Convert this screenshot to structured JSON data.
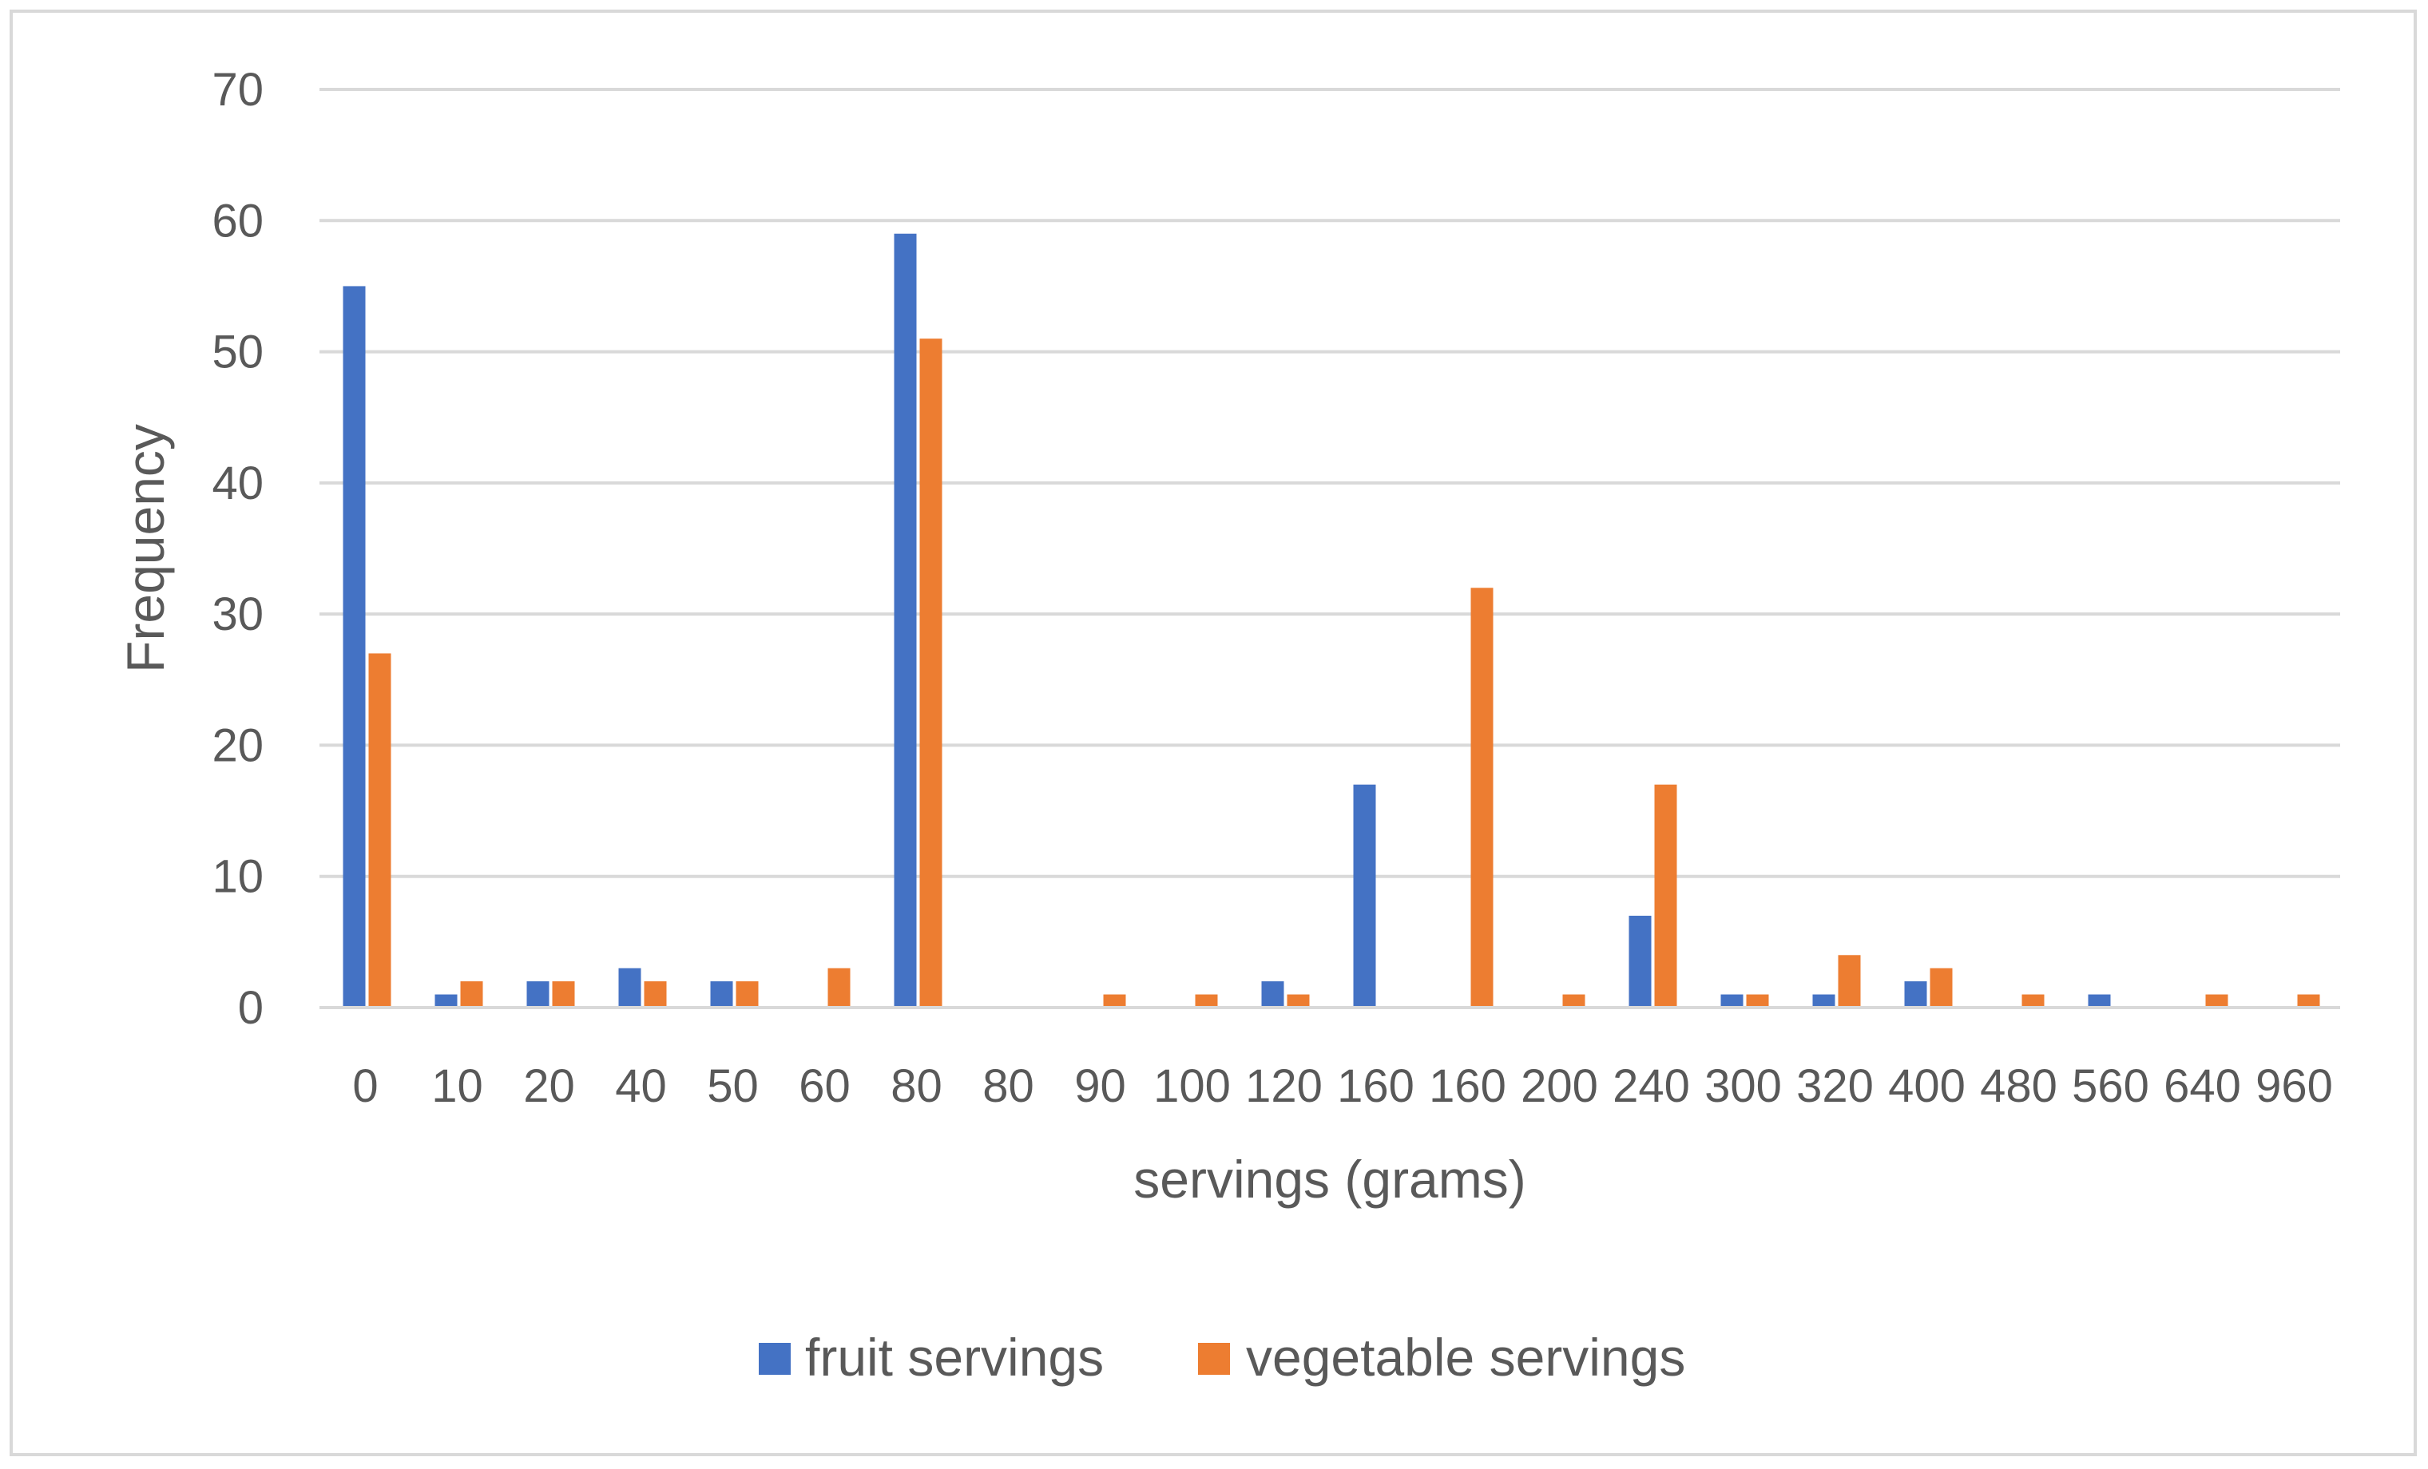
{
  "chart_data": {
    "type": "bar",
    "xlabel": "servings (grams)",
    "ylabel": "Frequency",
    "ylim": [
      0,
      70
    ],
    "yticks": [
      0,
      10,
      20,
      30,
      40,
      50,
      60,
      70
    ],
    "grid": true,
    "legend_position": "bottom",
    "categories": [
      "0",
      "10",
      "20",
      "40",
      "50",
      "60",
      "80",
      "80",
      "90",
      "100",
      "120",
      "160",
      "160",
      "200",
      "240",
      "300",
      "320",
      "400",
      "480",
      "560",
      "640",
      "960"
    ],
    "series": [
      {
        "name": "fruit servings",
        "color": "#4472c4",
        "values": [
          55,
          1,
          2,
          3,
          2,
          0,
          59,
          0,
          0,
          0,
          2,
          17,
          0,
          0,
          7,
          1,
          1,
          2,
          0,
          1,
          0,
          0
        ]
      },
      {
        "name": "vegetable servings",
        "color": "#ed7d31",
        "values": [
          27,
          2,
          2,
          2,
          2,
          3,
          51,
          0,
          1,
          1,
          1,
          0,
          32,
          1,
          17,
          1,
          4,
          3,
          1,
          0,
          1,
          1
        ]
      }
    ]
  }
}
